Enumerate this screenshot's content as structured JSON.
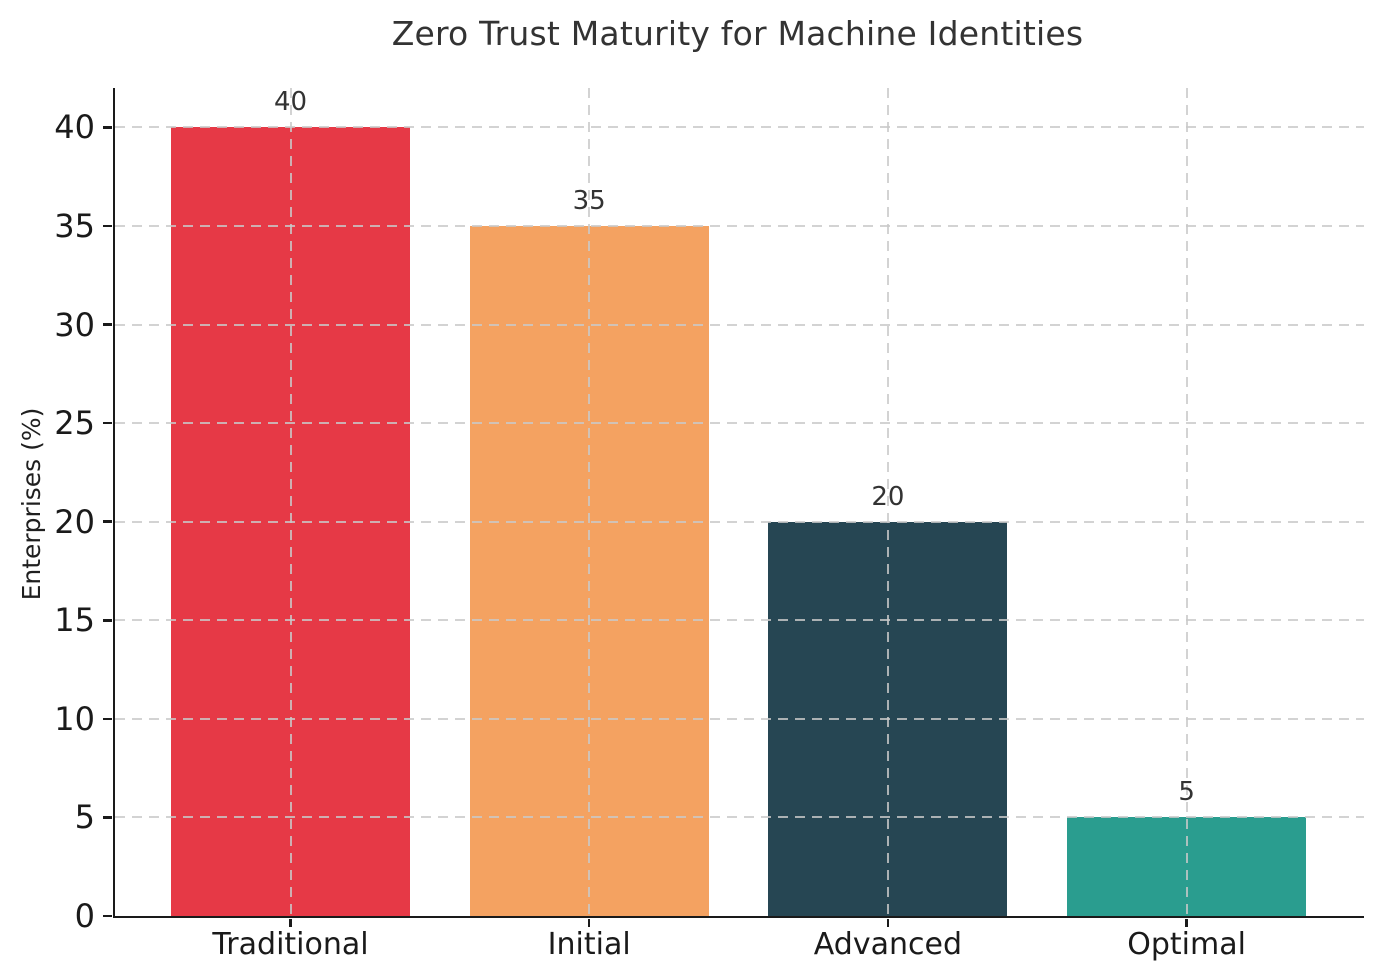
{
  "chart_data": {
    "type": "bar",
    "title": "Zero Trust Maturity for Machine Identities",
    "ylabel": "Enterprises (%)",
    "xlabel": "",
    "categories": [
      "Traditional",
      "Initial",
      "Advanced",
      "Optimal"
    ],
    "values": [
      40,
      35,
      20,
      5
    ],
    "value_labels": [
      "40",
      "35",
      "20",
      "5"
    ],
    "bar_colors": [
      "#e63946",
      "#f4a261",
      "#264653",
      "#2a9d8f"
    ],
    "yticks": [
      0,
      5,
      10,
      15,
      20,
      25,
      30,
      35,
      40
    ],
    "ylim": [
      0,
      42
    ],
    "grid": "dashed, horizontal at each y tick and vertical at each bar center, drawn over bars",
    "grid_color": "#c9c9c9",
    "legend": "none",
    "background_color": "#ffffff",
    "spine_color": "#1a1a1a",
    "text_color": "#1a1a1a",
    "title_color": "#333333"
  }
}
